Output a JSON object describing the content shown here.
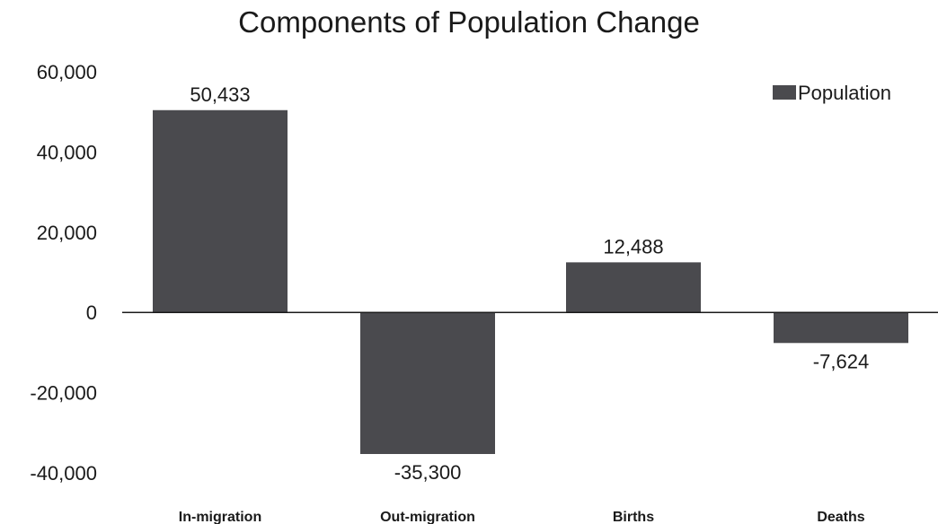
{
  "chart_data": {
    "type": "bar",
    "title": "Components of Population Change",
    "xlabel": "",
    "ylabel": "",
    "categories": [
      "In-migration",
      "Out-migration",
      "Births",
      "Deaths"
    ],
    "series": [
      {
        "name": "Population",
        "values": [
          50433,
          -35300,
          12488,
          -7624
        ]
      }
    ],
    "data_labels": [
      "50,433",
      "-35,300",
      "12,488",
      "-7,624"
    ],
    "ylim": [
      -40000,
      60000
    ],
    "yticks": [
      60000,
      40000,
      20000,
      0,
      -20000,
      -40000
    ],
    "ytick_labels": [
      "60,000",
      "40,000",
      "20,000",
      "0",
      "-20,000",
      "-40,000"
    ],
    "grid": false,
    "legend_position": "top-right",
    "colors": {
      "bar": "#4a4a4e",
      "axis": "#1a1a1a"
    }
  }
}
